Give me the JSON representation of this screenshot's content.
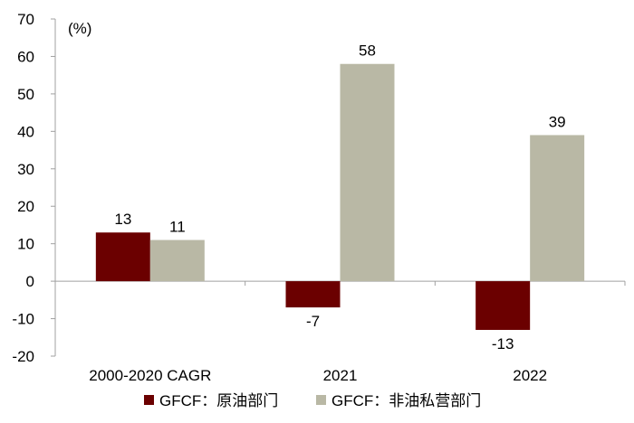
{
  "chart_data": {
    "type": "bar",
    "unit_label": "(%)",
    "categories": [
      "2000-2020 CAGR",
      "2021",
      "2022"
    ],
    "series": [
      {
        "name": "GFCF：原油部门",
        "color": "#6b0000",
        "values": [
          13,
          -7,
          -13
        ],
        "labels": [
          "13",
          "-7",
          "-13"
        ]
      },
      {
        "name": "GFCF：非油私营部门",
        "color": "#b9b8a5",
        "values": [
          11,
          58,
          39
        ],
        "labels": [
          "11",
          "58",
          "39"
        ]
      }
    ],
    "ylim": [
      -20,
      70
    ],
    "yticks": [
      -20,
      -10,
      0,
      10,
      20,
      30,
      40,
      50,
      60,
      70
    ],
    "ytick_labels": [
      "-20",
      "-10",
      "0",
      "10",
      "20",
      "30",
      "40",
      "50",
      "60",
      "70"
    ],
    "title": "",
    "xlabel": "",
    "ylabel": "",
    "legend_position": "bottom",
    "grid": false
  }
}
